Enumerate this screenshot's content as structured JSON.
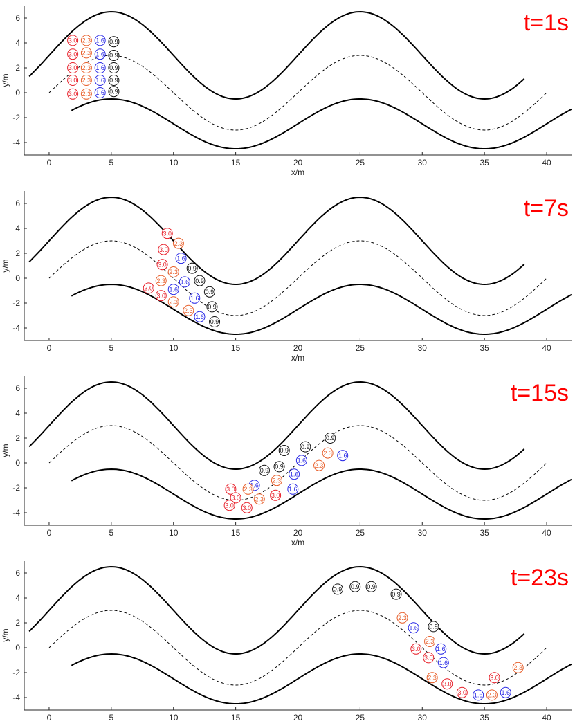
{
  "chart_data": [
    {
      "type": "scatter",
      "time_label": "t=1s",
      "xlabel": "x/m",
      "ylabel": "y/m",
      "xlim": [
        -2,
        42
      ],
      "ylim": [
        -5,
        7
      ],
      "xticks": [
        0,
        5,
        10,
        15,
        20,
        25,
        30,
        35,
        40
      ],
      "yticks": [
        -4,
        -2,
        0,
        2,
        4,
        6
      ],
      "grid": false,
      "particles": [
        {
          "x": 1.9,
          "y": 4.2,
          "label": "3.0"
        },
        {
          "x": 3.0,
          "y": 4.2,
          "label": "2.3"
        },
        {
          "x": 4.1,
          "y": 4.2,
          "label": "1.6"
        },
        {
          "x": 5.2,
          "y": 4.1,
          "label": "0.9"
        },
        {
          "x": 1.9,
          "y": 3.1,
          "label": "3.0"
        },
        {
          "x": 3.0,
          "y": 3.2,
          "label": "2.3"
        },
        {
          "x": 4.1,
          "y": 3.1,
          "label": "1.6"
        },
        {
          "x": 5.2,
          "y": 3.0,
          "label": "0.9"
        },
        {
          "x": 1.9,
          "y": 2.0,
          "label": "3.0"
        },
        {
          "x": 3.0,
          "y": 2.0,
          "label": "2.3"
        },
        {
          "x": 4.1,
          "y": 2.0,
          "label": "1.6"
        },
        {
          "x": 5.2,
          "y": 2.0,
          "label": "0.9"
        },
        {
          "x": 1.9,
          "y": 1.0,
          "label": "3.0"
        },
        {
          "x": 3.0,
          "y": 1.0,
          "label": "2.3"
        },
        {
          "x": 4.1,
          "y": 1.0,
          "label": "1.6"
        },
        {
          "x": 5.2,
          "y": 1.0,
          "label": "0.9"
        },
        {
          "x": 1.9,
          "y": -0.1,
          "label": "3.0"
        },
        {
          "x": 3.0,
          "y": -0.1,
          "label": "2.3"
        },
        {
          "x": 4.1,
          "y": 0.0,
          "label": "1.6"
        },
        {
          "x": 5.2,
          "y": 0.1,
          "label": "0.9"
        }
      ]
    },
    {
      "type": "scatter",
      "time_label": "t=7s",
      "xlabel": "x/m",
      "ylabel": "y/m",
      "xlim": [
        -2,
        42
      ],
      "ylim": [
        -5,
        7
      ],
      "xticks": [
        0,
        5,
        10,
        15,
        20,
        25,
        30,
        35,
        40
      ],
      "yticks": [
        -4,
        -2,
        0,
        2,
        4,
        6
      ],
      "grid": false,
      "particles": [
        {
          "x": 9.5,
          "y": 3.6,
          "label": "3.0"
        },
        {
          "x": 10.4,
          "y": 2.8,
          "label": "2.3"
        },
        {
          "x": 9.2,
          "y": 2.3,
          "label": "3.0"
        },
        {
          "x": 10.6,
          "y": 1.6,
          "label": "1.6"
        },
        {
          "x": 9.1,
          "y": 1.1,
          "label": "3.0"
        },
        {
          "x": 11.5,
          "y": 0.8,
          "label": "0.9"
        },
        {
          "x": 10.0,
          "y": 0.5,
          "label": "2.3"
        },
        {
          "x": 9.0,
          "y": -0.2,
          "label": "2.3"
        },
        {
          "x": 10.9,
          "y": -0.3,
          "label": "1.6"
        },
        {
          "x": 12.1,
          "y": -0.2,
          "label": "0.9"
        },
        {
          "x": 8.0,
          "y": -0.8,
          "label": "3.0"
        },
        {
          "x": 10.0,
          "y": -0.9,
          "label": "1.6"
        },
        {
          "x": 12.9,
          "y": -1.1,
          "label": "0.9"
        },
        {
          "x": 9.0,
          "y": -1.4,
          "label": "3.0"
        },
        {
          "x": 11.7,
          "y": -1.6,
          "label": "1.6"
        },
        {
          "x": 10.0,
          "y": -1.9,
          "label": "2.3"
        },
        {
          "x": 13.1,
          "y": -2.3,
          "label": "0.9"
        },
        {
          "x": 11.2,
          "y": -2.6,
          "label": "2.3"
        },
        {
          "x": 12.1,
          "y": -3.1,
          "label": "1.6"
        },
        {
          "x": 13.3,
          "y": -3.5,
          "label": "0.9"
        }
      ]
    },
    {
      "type": "scatter",
      "time_label": "t=15s",
      "xlabel": "x/m",
      "ylabel": "y/m",
      "xlim": [
        -2,
        42
      ],
      "ylim": [
        -5,
        7
      ],
      "xticks": [
        0,
        5,
        10,
        15,
        20,
        25,
        30,
        35,
        40
      ],
      "yticks": [
        -4,
        -2,
        0,
        2,
        4,
        6
      ],
      "grid": false,
      "particles": [
        {
          "x": 22.6,
          "y": 2.0,
          "label": "0.9"
        },
        {
          "x": 20.6,
          "y": 1.3,
          "label": "0.9"
        },
        {
          "x": 18.9,
          "y": 1.0,
          "label": "0.9"
        },
        {
          "x": 22.4,
          "y": 0.8,
          "label": "2.3"
        },
        {
          "x": 23.6,
          "y": 0.6,
          "label": "1.6"
        },
        {
          "x": 20.3,
          "y": 0.2,
          "label": "1.6"
        },
        {
          "x": 18.5,
          "y": -0.3,
          "label": "0.9"
        },
        {
          "x": 21.7,
          "y": -0.2,
          "label": "2.3"
        },
        {
          "x": 17.3,
          "y": -0.6,
          "label": "0.9"
        },
        {
          "x": 19.7,
          "y": -0.9,
          "label": "1.6"
        },
        {
          "x": 18.3,
          "y": -1.4,
          "label": "2.3"
        },
        {
          "x": 16.5,
          "y": -1.8,
          "label": "1.6"
        },
        {
          "x": 19.6,
          "y": -2.1,
          "label": "1.6"
        },
        {
          "x": 14.6,
          "y": -2.1,
          "label": "3.0"
        },
        {
          "x": 16.0,
          "y": -2.1,
          "label": "2.3"
        },
        {
          "x": 18.2,
          "y": -2.6,
          "label": "3.0"
        },
        {
          "x": 15.0,
          "y": -2.8,
          "label": "3.0"
        },
        {
          "x": 16.9,
          "y": -2.9,
          "label": "2.3"
        },
        {
          "x": 14.5,
          "y": -3.4,
          "label": "3.0"
        },
        {
          "x": 15.9,
          "y": -3.6,
          "label": "3.0"
        }
      ]
    },
    {
      "type": "scatter",
      "time_label": "t=23s",
      "xlabel": "",
      "ylabel": "y/m",
      "xlim": [
        -2,
        42
      ],
      "ylim": [
        -5,
        7
      ],
      "xticks": [
        0,
        5,
        10,
        15,
        20,
        25,
        30,
        35,
        40
      ],
      "yticks": [
        -4,
        -2,
        0,
        2,
        4,
        6
      ],
      "grid": false,
      "particles": [
        {
          "x": 23.2,
          "y": 4.7,
          "label": "0.9"
        },
        {
          "x": 24.6,
          "y": 4.9,
          "label": "0.9"
        },
        {
          "x": 25.9,
          "y": 4.9,
          "label": "0.9"
        },
        {
          "x": 27.9,
          "y": 4.3,
          "label": "0.9"
        },
        {
          "x": 28.4,
          "y": 2.4,
          "label": "2.3"
        },
        {
          "x": 29.3,
          "y": 1.6,
          "label": "1.6"
        },
        {
          "x": 30.9,
          "y": 1.7,
          "label": "0.9"
        },
        {
          "x": 30.6,
          "y": 0.5,
          "label": "2.3"
        },
        {
          "x": 29.5,
          "y": -0.1,
          "label": "3.0"
        },
        {
          "x": 31.5,
          "y": -0.1,
          "label": "1.6"
        },
        {
          "x": 30.5,
          "y": -0.8,
          "label": "3.0"
        },
        {
          "x": 31.7,
          "y": -1.2,
          "label": "1.6"
        },
        {
          "x": 30.8,
          "y": -2.4,
          "label": "2.3"
        },
        {
          "x": 37.7,
          "y": -1.6,
          "label": "2.3"
        },
        {
          "x": 35.8,
          "y": -2.4,
          "label": "3.0"
        },
        {
          "x": 32.0,
          "y": -2.9,
          "label": "3.0"
        },
        {
          "x": 33.2,
          "y": -3.6,
          "label": "3.0"
        },
        {
          "x": 34.5,
          "y": -3.8,
          "label": "1.6"
        },
        {
          "x": 35.6,
          "y": -3.8,
          "label": "2.3"
        },
        {
          "x": 36.7,
          "y": -3.6,
          "label": "1.6"
        }
      ]
    }
  ],
  "colors": {
    "3.0": "#e8202a",
    "2.3": "#e8602c",
    "1.6": "#2a2ae6",
    "0.9": "#111111",
    "time_label": "#ff0000",
    "axis": "#262626",
    "curve": "#000000"
  }
}
